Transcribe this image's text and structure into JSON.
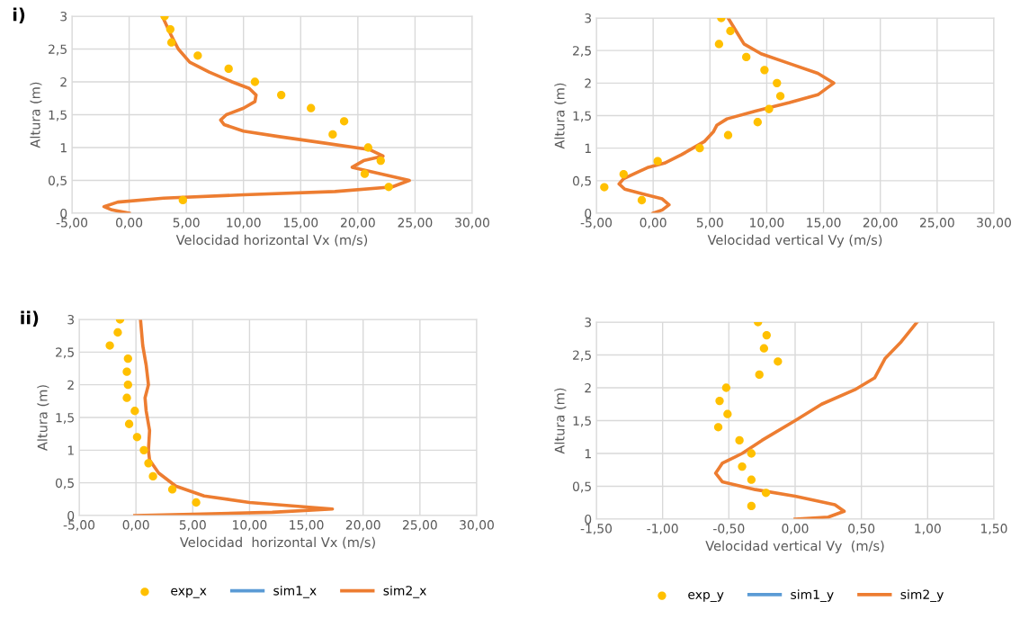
{
  "chart_data": [
    {
      "type": "line",
      "annotations": [
        "i)"
      ],
      "xlabel": "Velocidad horizontal Vx (m/s)",
      "ylabel": "Altura (m)",
      "grid": true,
      "legend": false,
      "xlim": [
        -5,
        30
      ],
      "xticks": [
        {
          "value": -5,
          "label": "-5,00"
        },
        {
          "value": 0,
          "label": "0,00"
        },
        {
          "value": 5,
          "label": "5,00"
        },
        {
          "value": 10,
          "label": "10,00"
        },
        {
          "value": 15,
          "label": "15,00"
        },
        {
          "value": 20,
          "label": "20,00"
        },
        {
          "value": 25,
          "label": "25,00"
        },
        {
          "value": 30,
          "label": "30,00"
        }
      ],
      "ylim": [
        0,
        3
      ],
      "yticks": [
        0,
        {
          "value": 0.5,
          "label": "0,5"
        },
        1,
        {
          "value": 1.5,
          "label": "1,5"
        },
        2,
        {
          "value": 2.5,
          "label": "2,5"
        },
        3
      ],
      "series": [
        {
          "type": "scatter",
          "marker": "circle",
          "color": "#ffc000",
          "x": [
            3.1,
            3.6,
            3.7,
            6.0,
            8.7,
            11.0,
            13.3,
            15.9,
            18.8,
            17.8,
            20.9,
            22.0,
            20.6,
            22.7,
            4.7
          ],
          "values": [
            3.0,
            2.8,
            2.6,
            2.4,
            2.2,
            2.0,
            1.8,
            1.6,
            1.4,
            1.2,
            1.0,
            0.8,
            0.6,
            0.4,
            0.2
          ]
        },
        {
          "line_style": "solid",
          "color": "#ed7d31",
          "x": [
            0.0,
            -1.5,
            -2.2,
            -1.0,
            3,
            10,
            18,
            23,
            24.5,
            22,
            19.5,
            20.5,
            22.2,
            21,
            17,
            13,
            10,
            8.3,
            8,
            8.5,
            10,
            11,
            11.1,
            10.5,
            9,
            7,
            5.3,
            4.3,
            3.7,
            3.3,
            2.9
          ],
          "values": [
            0,
            0.05,
            0.1,
            0.17,
            0.23,
            0.28,
            0.33,
            0.4,
            0.5,
            0.6,
            0.7,
            0.8,
            0.87,
            0.97,
            1.07,
            1.17,
            1.25,
            1.35,
            1.42,
            1.5,
            1.6,
            1.7,
            1.8,
            1.9,
            2.0,
            2.15,
            2.3,
            2.5,
            2.7,
            2.85,
            3.0
          ]
        }
      ]
    },
    {
      "type": "line",
      "xlabel": "Velocidad vertical Vy (m/s)",
      "ylabel": "Altura (m)",
      "grid": true,
      "legend": false,
      "xlim": [
        -5,
        30
      ],
      "xticks": [
        {
          "value": -5,
          "label": "-5,00"
        },
        {
          "value": 0,
          "label": "0,00"
        },
        {
          "value": 5,
          "label": "5,00"
        },
        {
          "value": 10,
          "label": "10,00"
        },
        {
          "value": 15,
          "label": "15,00"
        },
        {
          "value": 20,
          "label": "20,00"
        },
        {
          "value": 25,
          "label": "25,00"
        },
        {
          "value": 30,
          "label": "30,00"
        }
      ],
      "ylim": [
        0,
        3
      ],
      "yticks": [
        0,
        {
          "value": 0.5,
          "label": "0,5"
        },
        1,
        {
          "value": 1.5,
          "label": "1,5"
        },
        2,
        {
          "value": 2.5,
          "label": "2,5"
        },
        3
      ],
      "series": [
        {
          "type": "scatter",
          "marker": "circle",
          "color": "#ffc000",
          "x": [
            6.0,
            6.8,
            5.8,
            8.2,
            9.8,
            10.9,
            11.2,
            10.2,
            9.2,
            6.6,
            4.1,
            0.4,
            -2.6,
            -4.3,
            -1.0
          ],
          "values": [
            3.0,
            2.8,
            2.6,
            2.4,
            2.2,
            2.0,
            1.8,
            1.6,
            1.4,
            1.2,
            1.0,
            0.8,
            0.6,
            0.4,
            0.2
          ]
        },
        {
          "line_style": "solid",
          "color": "#ed7d31",
          "x": [
            0,
            0.8,
            1.4,
            0.8,
            -1,
            -2.5,
            -3,
            -2.6,
            -1.5,
            -0.5,
            1,
            2.5,
            4.5,
            5.3,
            5.6,
            6.5,
            9,
            12,
            14.5,
            15.9,
            14.5,
            12,
            9.5,
            8,
            7.3,
            6.6
          ],
          "values": [
            0,
            0.05,
            0.13,
            0.22,
            0.3,
            0.37,
            0.45,
            0.53,
            0.62,
            0.7,
            0.77,
            0.9,
            1.1,
            1.25,
            1.35,
            1.45,
            1.57,
            1.7,
            1.82,
            2.0,
            2.15,
            2.3,
            2.45,
            2.6,
            2.8,
            3.0
          ]
        }
      ]
    },
    {
      "type": "line",
      "annotations": [
        "ii)"
      ],
      "xlabel": "Velocidad  horizontal Vx (m/s)",
      "ylabel": "Altura (m)",
      "grid": true,
      "legend": "bottom",
      "xlim": [
        -5,
        30
      ],
      "xticks": [
        {
          "value": -5,
          "label": "-5,00"
        },
        {
          "value": 0,
          "label": "0,00"
        },
        {
          "value": 5,
          "label": "5,00"
        },
        {
          "value": 10,
          "label": "10,00"
        },
        {
          "value": 15,
          "label": "15,00"
        },
        {
          "value": 20,
          "label": "20,00"
        },
        {
          "value": 25,
          "label": "25,00"
        },
        {
          "value": 30,
          "label": "30,00"
        }
      ],
      "ylim": [
        0,
        3
      ],
      "yticks": [
        0,
        {
          "value": 0.5,
          "label": "0,5"
        },
        1,
        {
          "value": 1.5,
          "label": "1,5"
        },
        2,
        {
          "value": 2.5,
          "label": "2,5"
        },
        3
      ],
      "series": [
        {
          "name": "exp_x",
          "type": "scatter",
          "marker": "circle",
          "color": "#ffc000",
          "x": [
            -1.4,
            -1.6,
            -2.3,
            -0.7,
            -0.8,
            -0.7,
            -0.8,
            -0.1,
            -0.6,
            0.1,
            0.7,
            1.1,
            1.5,
            3.2,
            5.3
          ],
          "values": [
            3.0,
            2.8,
            2.6,
            2.4,
            2.2,
            2.0,
            1.8,
            1.6,
            1.4,
            1.2,
            1.0,
            0.8,
            0.6,
            0.4,
            0.2
          ]
        },
        {
          "name": "sim1_x",
          "line_style": "solid",
          "color": "#5b9bd5"
        },
        {
          "name": "sim2_x",
          "line_style": "solid",
          "color": "#ed7d31",
          "x": [
            -0.1,
            5,
            12,
            17.3,
            15,
            10,
            6,
            3.5,
            2,
            1.2,
            1.1,
            1.2,
            0.9,
            0.8,
            1.1,
            0.9,
            0.6,
            0.4
          ],
          "values": [
            0,
            0.02,
            0.05,
            0.1,
            0.13,
            0.2,
            0.3,
            0.45,
            0.65,
            0.85,
            1.0,
            1.3,
            1.6,
            1.8,
            2.0,
            2.3,
            2.6,
            3.0
          ]
        }
      ]
    },
    {
      "type": "line",
      "xlabel": "Velocidad vertical Vy  (m/s)",
      "ylabel": "Altura (m)",
      "grid": true,
      "legend": "bottom",
      "xlim": [
        -1.5,
        1.5
      ],
      "xticks": [
        {
          "value": -1.5,
          "label": "-1,50"
        },
        {
          "value": -1,
          "label": "-1,00"
        },
        {
          "value": -0.5,
          "label": "-0,50"
        },
        {
          "value": 0,
          "label": "0,00"
        },
        {
          "value": 0.5,
          "label": "0,50"
        },
        {
          "value": 1,
          "label": "1,00"
        },
        {
          "value": 1.5,
          "label": "1,50"
        }
      ],
      "ylim": [
        0,
        3
      ],
      "yticks": [
        0,
        {
          "value": 0.5,
          "label": "0,5"
        },
        1,
        {
          "value": 1.5,
          "label": "1,5"
        },
        2,
        {
          "value": 2.5,
          "label": "2,5"
        },
        3
      ],
      "series": [
        {
          "name": "exp_y",
          "type": "scatter",
          "marker": "circle",
          "color": "#ffc000",
          "x": [
            -0.28,
            -0.215,
            -0.235,
            -0.13,
            -0.27,
            -0.52,
            -0.57,
            -0.51,
            -0.58,
            -0.42,
            -0.33,
            -0.4,
            -0.33,
            -0.22,
            -0.33
          ],
          "values": [
            3.0,
            2.8,
            2.6,
            2.4,
            2.2,
            2.0,
            1.8,
            1.6,
            1.4,
            1.2,
            1.0,
            0.8,
            0.6,
            0.4,
            0.2
          ]
        },
        {
          "name": "sim1_y",
          "line_style": "solid",
          "color": "#5b9bd5"
        },
        {
          "name": "sim2_y",
          "line_style": "solid",
          "color": "#ed7d31",
          "x": [
            0,
            0.25,
            0.37,
            0.3,
            0,
            -0.3,
            -0.55,
            -0.6,
            -0.55,
            -0.4,
            -0.25,
            0,
            0.2,
            0.45,
            0.6,
            0.68,
            0.8,
            0.92
          ],
          "values": [
            0,
            0.03,
            0.12,
            0.22,
            0.35,
            0.45,
            0.57,
            0.7,
            0.85,
            1.0,
            1.2,
            1.5,
            1.75,
            1.97,
            2.15,
            2.45,
            2.7,
            3.0
          ]
        }
      ]
    }
  ]
}
